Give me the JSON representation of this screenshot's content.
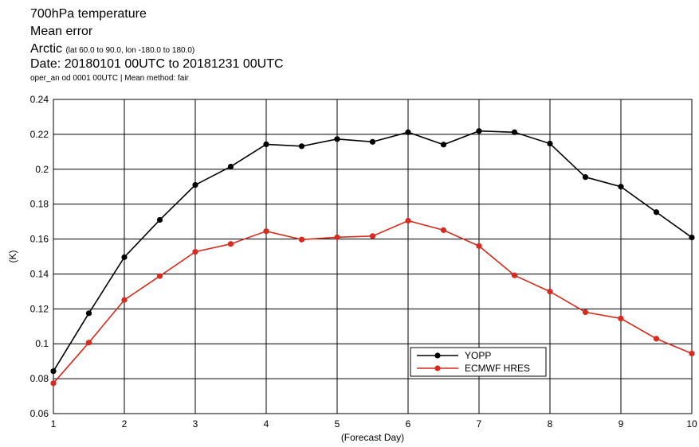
{
  "header": {
    "line1": "700hPa temperature",
    "line2": "Mean error",
    "region": "Arctic",
    "region_detail": "(lat  60.0 to 90.0, lon  -180.0 to  180.0)",
    "date": "Date: 20180101 00UTC to 20181231 00UTC",
    "info": "oper_an od 0001 00UTC | Mean method: fair"
  },
  "chart_data": {
    "type": "line",
    "title": "700hPa temperature",
    "subtitle": "Mean error",
    "xlabel": "(Forecast Day)",
    "ylabel": "(K)",
    "xlim": [
      1,
      10
    ],
    "ylim": [
      0.06,
      0.24
    ],
    "xticks": [
      1,
      2,
      3,
      4,
      5,
      6,
      7,
      8,
      9,
      10
    ],
    "yticks": [
      "0.06",
      "0.08",
      "0.1",
      "0.12",
      "0.14",
      "0.16",
      "0.18",
      "0.2",
      "0.22",
      "0.24"
    ],
    "grid": true,
    "legend_position": "bottom-right",
    "x": [
      1,
      1.5,
      2,
      2.5,
      3,
      3.5,
      4,
      4.5,
      5,
      5.5,
      6,
      6.5,
      7,
      7.5,
      8,
      8.5,
      9,
      9.5,
      10
    ],
    "series": [
      {
        "name": "YOPP",
        "color": "#000000",
        "values": [
          0.0843,
          0.1175,
          0.1496,
          0.171,
          0.191,
          0.2015,
          0.2143,
          0.2132,
          0.2173,
          0.2157,
          0.2212,
          0.2141,
          0.2219,
          0.2212,
          0.2147,
          0.1955,
          0.19,
          0.1754,
          0.1609
        ]
      },
      {
        "name": "ECMWF HRES",
        "color": "#d62b1e",
        "values": [
          0.0774,
          0.1007,
          0.1251,
          0.1388,
          0.1527,
          0.1572,
          0.1645,
          0.1597,
          0.161,
          0.1617,
          0.1705,
          0.1651,
          0.156,
          0.1392,
          0.1299,
          0.1181,
          0.1145,
          0.1029,
          0.0944
        ]
      }
    ]
  }
}
